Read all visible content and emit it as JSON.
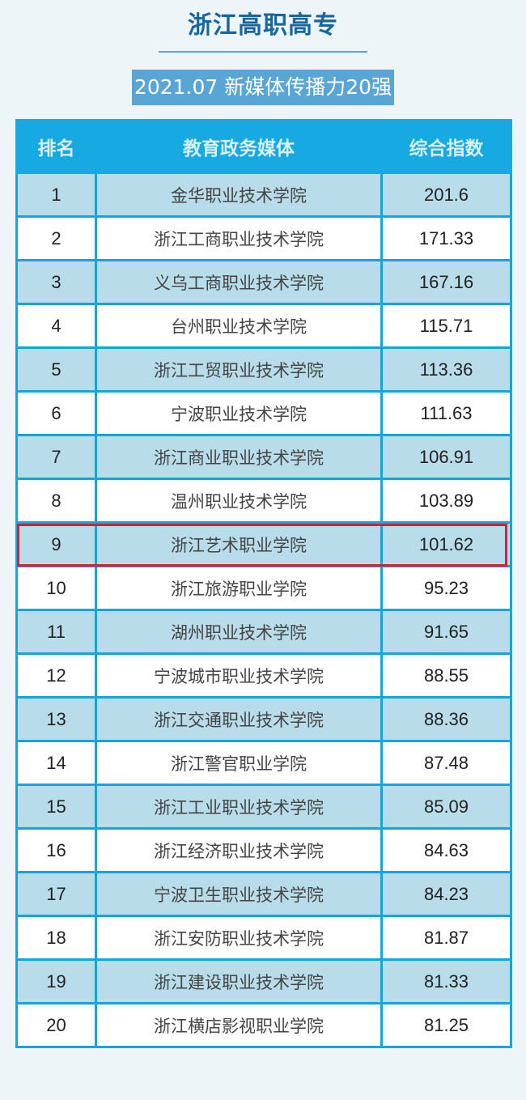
{
  "title": "浙江高职高专",
  "subtitle": "2021.07 新媒体传播力20强",
  "table": {
    "headers": [
      "排名",
      "教育政务媒体",
      "综合指数"
    ],
    "highlight_rank": 9,
    "highlight_color": "#d2232f",
    "rows": [
      {
        "rank": "1",
        "name": "金华职业技术学院",
        "score": "201.6"
      },
      {
        "rank": "2",
        "name": "浙江工商职业技术学院",
        "score": "171.33"
      },
      {
        "rank": "3",
        "name": "义乌工商职业技术学院",
        "score": "167.16"
      },
      {
        "rank": "4",
        "name": "台州职业技术学院",
        "score": "115.71"
      },
      {
        "rank": "5",
        "name": "浙江工贸职业技术学院",
        "score": "113.36"
      },
      {
        "rank": "6",
        "name": "宁波职业技术学院",
        "score": "111.63"
      },
      {
        "rank": "7",
        "name": "浙江商业职业技术学院",
        "score": "106.91"
      },
      {
        "rank": "8",
        "name": "温州职业技术学院",
        "score": "103.89"
      },
      {
        "rank": "9",
        "name": "浙江艺术职业学院",
        "score": "101.62"
      },
      {
        "rank": "10",
        "name": "浙江旅游职业学院",
        "score": "95.23"
      },
      {
        "rank": "11",
        "name": "湖州职业技术学院",
        "score": "91.65"
      },
      {
        "rank": "12",
        "name": "宁波城市职业技术学院",
        "score": "88.55"
      },
      {
        "rank": "13",
        "name": "浙江交通职业技术学院",
        "score": "88.36"
      },
      {
        "rank": "14",
        "name": "浙江警官职业学院",
        "score": "87.48"
      },
      {
        "rank": "15",
        "name": "浙江工业职业技术学院",
        "score": "85.09"
      },
      {
        "rank": "16",
        "name": "浙江经济职业技术学院",
        "score": "84.63"
      },
      {
        "rank": "17",
        "name": "宁波卫生职业技术学院",
        "score": "84.23"
      },
      {
        "rank": "18",
        "name": "浙江安防职业技术学院",
        "score": "81.87"
      },
      {
        "rank": "19",
        "name": "浙江建设职业技术学院",
        "score": "81.33"
      },
      {
        "rank": "20",
        "name": "浙江横店影视职业学院",
        "score": "81.25"
      }
    ]
  }
}
